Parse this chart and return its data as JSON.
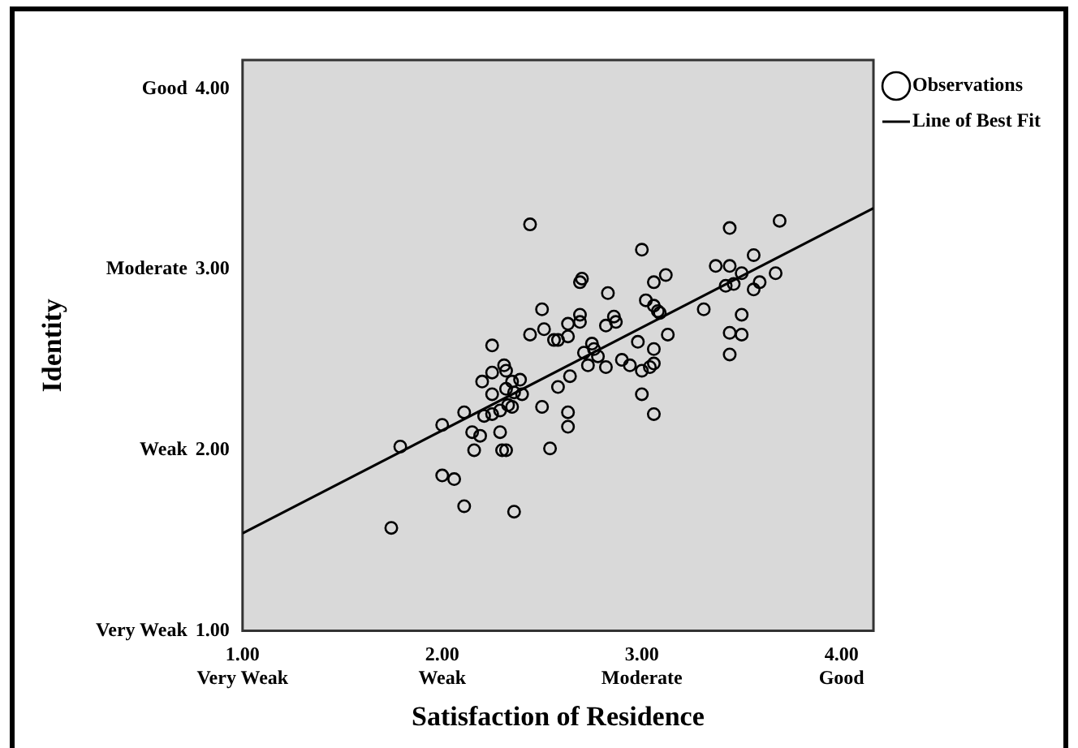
{
  "chart_data": {
    "type": "scatter",
    "xlabel": "Satisfaction of Residence",
    "ylabel": "Identity",
    "xlim": [
      1,
      4.16
    ],
    "ylim": [
      1,
      4.16
    ],
    "xticks": [
      {
        "value": 1,
        "label": "1.00\nVery Weak"
      },
      {
        "value": 2,
        "label": "2.00\nWeak"
      },
      {
        "value": 3,
        "label": "3.00\nModerate"
      },
      {
        "value": 4,
        "label": "4.00\nGood"
      }
    ],
    "yticks": [
      {
        "value": 1,
        "label": "1.00"
      },
      {
        "value": 2,
        "label": "2.00"
      },
      {
        "value": 3,
        "label": "3.00"
      },
      {
        "value": 4,
        "label": "4.00"
      }
    ],
    "annotations": [
      "Very Weak",
      "Weak",
      "Moderate",
      "Good"
    ],
    "grid": false,
    "legend": "top right",
    "marker": "circle",
    "series": [
      {
        "name": "Observations",
        "color": "#000000",
        "x": [
          1.745,
          1.79,
          2.0,
          2.0,
          2.06,
          2.11,
          2.11,
          2.15,
          2.16,
          2.19,
          2.2,
          2.21,
          2.25,
          2.25,
          2.25,
          2.25,
          2.29,
          2.3,
          2.32,
          2.29,
          2.31,
          2.32,
          2.32,
          2.33,
          2.35,
          2.35,
          2.39,
          2.36,
          2.4,
          2.36,
          2.44,
          2.44,
          2.5,
          2.5,
          2.51,
          2.54,
          2.56,
          2.58,
          2.58,
          2.63,
          2.63,
          2.63,
          2.63,
          2.64,
          2.69,
          2.7,
          2.69,
          2.69,
          2.71,
          2.73,
          2.75,
          2.76,
          2.78,
          2.82,
          2.82,
          2.83,
          2.86,
          2.87,
          2.9,
          2.94,
          2.98,
          3.0,
          3.0,
          3.0,
          3.02,
          3.04,
          3.06,
          3.06,
          3.06,
          3.06,
          3.06,
          3.08,
          3.09,
          3.12,
          3.13,
          3.31,
          3.37,
          3.42,
          3.44,
          3.44,
          3.44,
          3.44,
          3.46,
          3.5,
          3.5,
          3.5,
          3.56,
          3.56,
          3.59,
          3.67,
          3.69
        ],
        "values": [
          1.57,
          2.02,
          2.14,
          1.86,
          1.84,
          1.69,
          2.21,
          2.1,
          2.0,
          2.08,
          2.38,
          2.19,
          2.58,
          2.43,
          2.2,
          2.31,
          2.1,
          2.0,
          2.0,
          2.22,
          2.47,
          2.44,
          2.34,
          2.25,
          2.24,
          2.38,
          2.39,
          1.66,
          2.31,
          2.32,
          3.25,
          2.64,
          2.78,
          2.24,
          2.67,
          2.01,
          2.61,
          2.35,
          2.61,
          2.7,
          2.63,
          2.21,
          2.13,
          2.41,
          2.93,
          2.95,
          2.75,
          2.71,
          2.54,
          2.47,
          2.59,
          2.56,
          2.52,
          2.46,
          2.69,
          2.87,
          2.74,
          2.71,
          2.5,
          2.47,
          2.6,
          3.11,
          2.44,
          2.31,
          2.83,
          2.46,
          2.48,
          2.56,
          2.2,
          2.93,
          2.8,
          2.77,
          2.76,
          2.97,
          2.64,
          2.78,
          3.02,
          2.91,
          3.23,
          3.02,
          2.65,
          2.53,
          2.92,
          2.98,
          2.75,
          2.64,
          3.08,
          2.89,
          2.93,
          2.98,
          3.27
        ]
      },
      {
        "name": "Line of Best Fit",
        "type": "line",
        "marker": "none",
        "line_style": "solid",
        "color": "#000000",
        "x": [
          1,
          4.16
        ],
        "values": [
          1.54,
          3.34
        ]
      }
    ]
  }
}
